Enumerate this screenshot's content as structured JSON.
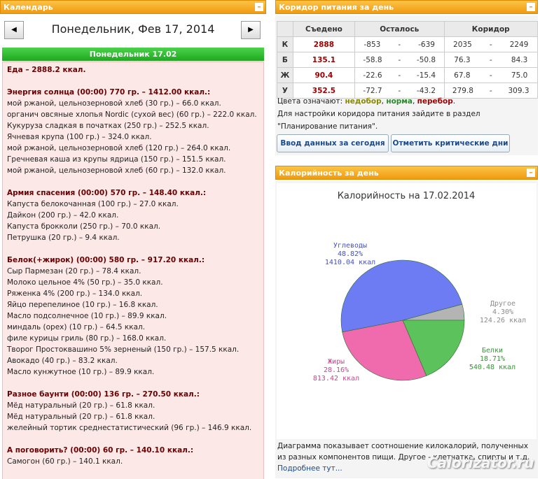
{
  "calendar": {
    "header": "Календарь",
    "date": "Понедельник, Фев 17, 2014",
    "day_bar": "Понедельник 17.02",
    "total": "Еда – 2888.2 ккал.",
    "meals": [
      {
        "title": "Энергия солнца (00:00) 770 гр. – 1412.00 ккал.:",
        "items": [
          "мой ржаной, цельнозерновой хлеб (30 гр.) – 66.0 ккал.",
          "органич овсяные хлопья Nordic (сухой вес) (60 гр.) – 222.0 ккал.",
          "Кукуруза сладкая в початках (250 гр.) – 252.5 ккал.",
          "Ячневая крупа (100 гр.) – 324.0 ккал.",
          "мой ржаной, цельнозерновой хлеб (120 гр.) – 264.0 ккал.",
          "Гречневая каша из крупы ядрица (150 гр.) – 151.5 ккал.",
          "мой ржаной, цельнозерновой хлеб (60 гр.) – 132.0 ккал."
        ]
      },
      {
        "title": "Армия спасения (00:00) 570 гр. – 148.40 ккал.:",
        "items": [
          "Капуста белокочанная (100 гр.) – 27.0 ккал.",
          "Дайкон (200 гр.) – 42.0 ккал.",
          "Капуста брокколи (250 гр.) – 70.0 ккал.",
          "Петрушка (20 гр.) – 9.4 ккал."
        ]
      },
      {
        "title": "Белок(+жирок) (00:00) 580 гр. – 917.20 ккал.:",
        "items": [
          "Сыр Пармезан (20 гр.) – 78.4 ккал.",
          "Молоко цельное 4% (50 гр.) – 35.0 ккал.",
          "Ряженка 4% (200 гр.) – 134.0 ккал.",
          "Яйцо перепелиное (10 гр.) – 16.8 ккал.",
          "Масло подсолнечное (10 гр.) – 89.9 ккал.",
          "миндаль (орех) (10 гр.) – 64.5 ккал.",
          "филе курицы гриль (80 гр.) – 168.0 ккал.",
          "Творог Простоквашино 5% зерненый (150 гр.) – 157.5 ккал.",
          "Авокадо (40 гр.) – 83.2 ккал.",
          "Масло кунжутное (10 гр.) – 89.9 ккал."
        ]
      },
      {
        "title": "Разное баунти (00:00) 136 гр. – 270.50 ккал.:",
        "items": [
          "Мёд натуральный (20 гр.) – 61.8 ккал.",
          "Мёд натуральный (20 гр.) – 61.8 ккал.",
          "желейный тортик среднестатистический (96 гр.) – 146.9 ккал."
        ]
      },
      {
        "title": "А поговорить? (00:00) 60 гр. – 140.10 ккал.:",
        "items": [
          "Самогон (60 гр.) – 140.1 ккал."
        ]
      }
    ]
  },
  "corridor": {
    "header": "Коридор питания за день",
    "columns": [
      "Съедено",
      "Осталось",
      "Коридор"
    ],
    "range_separator": "-",
    "rows": [
      {
        "label": "К",
        "eaten": "2888",
        "left": [
          "-853",
          "-639"
        ],
        "range": [
          "2035",
          "2249"
        ]
      },
      {
        "label": "Б",
        "eaten": "135.1",
        "left": [
          "-58.8",
          "-50.8"
        ],
        "range": [
          "76.3",
          "84.3"
        ]
      },
      {
        "label": "Ж",
        "eaten": "90.4",
        "left": [
          "-22.6",
          "-15.4"
        ],
        "range": [
          "67.8",
          "75.0"
        ]
      },
      {
        "label": "У",
        "eaten": "352.5",
        "left": [
          "-72.7",
          "-43.2"
        ],
        "range": [
          "279.8",
          "309.3"
        ]
      }
    ],
    "legend_prefix": "Цвета означают:",
    "legend_words": [
      {
        "text": "недобор",
        "color": "#8a8a00"
      },
      {
        "text": "норма",
        "color": "#2a8a2a"
      },
      {
        "text": "перебор",
        "color": "#a00000"
      }
    ],
    "note_line1": "Для настройки коридора питания зайдите в раздел",
    "note_line2": "\"Планирование питания\".",
    "buttons": [
      "Ввод данных за сегодня",
      "Отметить критические дни"
    ]
  },
  "calories_panel": {
    "header": "Калорийность за день",
    "footer": "Диаграмма показывает соотношение килокалорий, полученных из разных компонентов пищи. Другое - клетчатка, спирты и т.д.",
    "more": "Подробнее тут...",
    "watermark": "Calorizator.ru"
  },
  "chart_data": {
    "type": "pie",
    "title": "Калорийность на 17.02.2014",
    "categories": [
      "Другое",
      "Белки",
      "Жиры",
      "Углеводы"
    ],
    "values": [
      4.3,
      18.71,
      28.16,
      48.82
    ],
    "value_labels": [
      "4.30%",
      "18.71%",
      "28.16%",
      "48.82%"
    ],
    "energy_labels": [
      "124.26 ккал",
      "540.48 ккал",
      "813.42 ккал",
      "1410.04 ккал"
    ],
    "colors": [
      "#b4b4b4",
      "#5cc25c",
      "#f06aae",
      "#6e7cf4"
    ],
    "label_colors": [
      "#8c8c8c",
      "#2e9a2e",
      "#d0408f",
      "#3d4fd6"
    ]
  }
}
